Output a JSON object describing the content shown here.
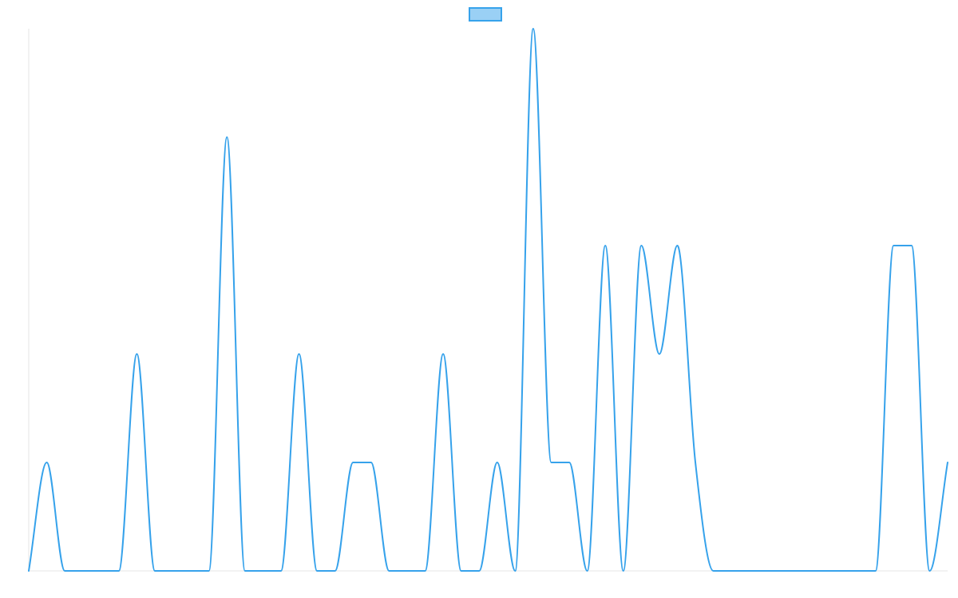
{
  "chart_data": {
    "type": "line",
    "title": "",
    "xlabel": "",
    "ylabel": "",
    "x": [
      0,
      1,
      2,
      3,
      4,
      5,
      6,
      7,
      8,
      9,
      10,
      11,
      12,
      13,
      14,
      15,
      16,
      17,
      18,
      19,
      20,
      21,
      22,
      23,
      24,
      25,
      26,
      27,
      28,
      29,
      30,
      31,
      32,
      33,
      34,
      35,
      36,
      37,
      38,
      39,
      40,
      41,
      42,
      43,
      44,
      45,
      46,
      47,
      48,
      49,
      50,
      51
    ],
    "ylim": [
      0,
      5
    ],
    "grid": false,
    "legend_position": "top-center",
    "series": [
      {
        "name": "",
        "line_color": "#36a2eb",
        "fill_color": "#9ad0f5",
        "values": [
          0,
          1,
          0,
          0,
          0,
          0,
          2,
          0,
          0,
          0,
          0,
          4,
          0,
          0,
          0,
          2,
          0,
          0,
          1,
          1,
          0,
          0,
          0,
          2,
          0,
          0,
          1,
          0,
          5,
          1,
          1,
          0,
          3,
          0,
          3,
          2,
          3,
          1,
          0,
          0,
          0,
          0,
          0,
          0,
          0,
          0,
          0,
          0,
          3,
          3,
          0,
          1
        ]
      }
    ],
    "legend": [
      {
        "label": ""
      }
    ]
  }
}
